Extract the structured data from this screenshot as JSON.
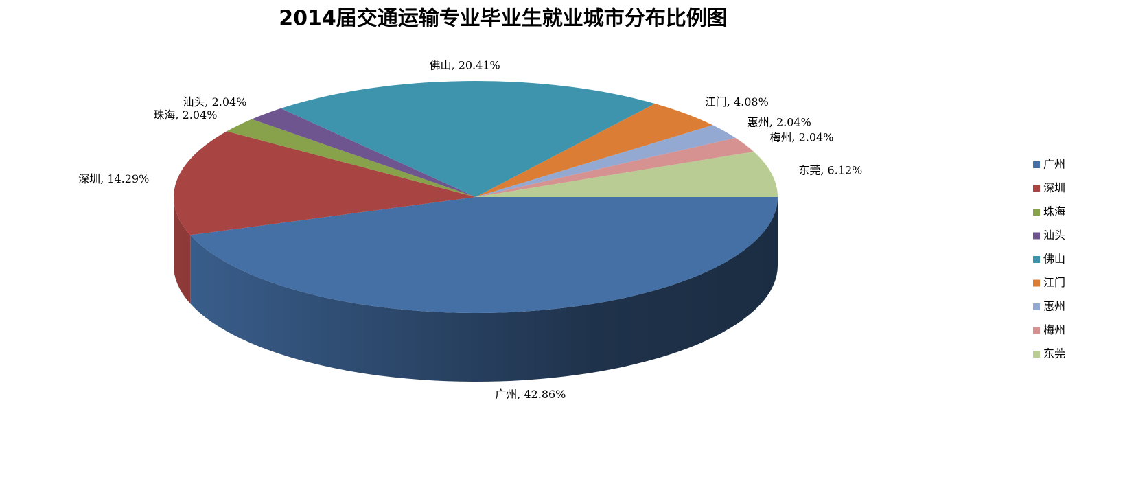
{
  "chart_data": {
    "type": "pie3d",
    "title": "2014届交通运输专业毕业生就业城市分布比例图",
    "categories": [
      "广州",
      "深圳",
      "珠海",
      "汕头",
      "佛山",
      "江门",
      "惠州",
      "梅州",
      "东莞"
    ],
    "values": [
      42.86,
      14.29,
      2.04,
      2.04,
      20.41,
      4.08,
      2.04,
      2.04,
      6.12
    ],
    "value_labels": [
      "广州, 42.86%",
      "深圳, 14.29%",
      "珠海, 2.04%",
      "汕头, 2.04%",
      "佛山, 20.41%",
      "江门, 4.08%",
      "惠州, 2.04%",
      "梅州, 2.04%",
      "东莞, 6.12%"
    ],
    "colors": [
      "#4470a6",
      "#a84442",
      "#87a24b",
      "#6e558f",
      "#3f94ad",
      "#db7d35",
      "#94a9d2",
      "#d59291",
      "#b8cc93"
    ],
    "legend": "right"
  }
}
